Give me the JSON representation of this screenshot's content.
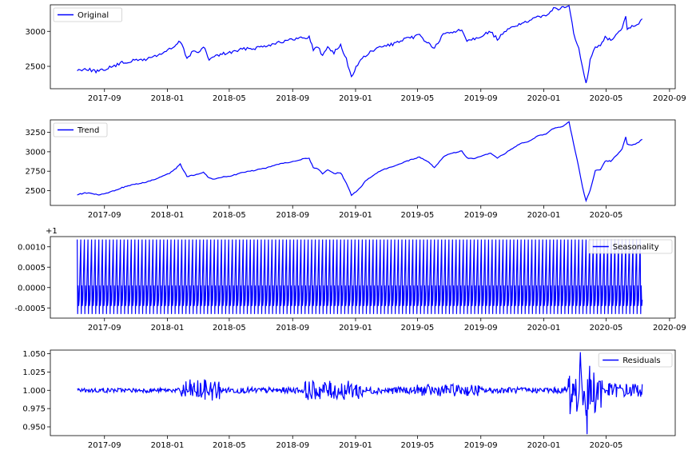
{
  "chart_data": [
    {
      "type": "line",
      "legend_label": "Original",
      "legend_loc": "upper left",
      "color": "#0000ff",
      "xlim": [
        "2017-05-19",
        "2020-09-12"
      ],
      "xticks": [
        "2017-09",
        "2018-01",
        "2018-05",
        "2018-09",
        "2019-01",
        "2019-05",
        "2019-09",
        "2020-01",
        "2020-05",
        "2020-09"
      ],
      "ylim": [
        2180,
        3380
      ],
      "yticks": [
        "2500",
        "3000"
      ],
      "x": [
        "2017-07-10",
        "2017-07-25",
        "2017-08-10",
        "2017-08-21",
        "2017-09-05",
        "2017-09-20",
        "2017-10-05",
        "2017-10-20",
        "2017-11-05",
        "2017-11-20",
        "2017-12-05",
        "2017-12-20",
        "2018-01-05",
        "2018-01-15",
        "2018-01-26",
        "2018-02-08",
        "2018-02-20",
        "2018-03-05",
        "2018-03-12",
        "2018-03-23",
        "2018-04-05",
        "2018-04-20",
        "2018-05-05",
        "2018-05-20",
        "2018-06-05",
        "2018-06-20",
        "2018-07-05",
        "2018-07-20",
        "2018-08-05",
        "2018-08-20",
        "2018-09-05",
        "2018-09-20",
        "2018-10-03",
        "2018-10-11",
        "2018-10-20",
        "2018-10-29",
        "2018-11-08",
        "2018-11-20",
        "2018-12-03",
        "2018-12-14",
        "2018-12-24",
        "2019-01-05",
        "2019-01-20",
        "2019-02-05",
        "2019-02-20",
        "2019-03-05",
        "2019-03-20",
        "2019-04-05",
        "2019-04-20",
        "2019-05-05",
        "2019-05-20",
        "2019-06-03",
        "2019-06-20",
        "2019-07-05",
        "2019-07-26",
        "2019-08-05",
        "2019-08-20",
        "2019-09-05",
        "2019-09-20",
        "2019-10-03",
        "2019-10-20",
        "2019-11-05",
        "2019-11-20",
        "2019-12-05",
        "2019-12-20",
        "2020-01-05",
        "2020-01-20",
        "2020-02-05",
        "2020-02-19",
        "2020-02-28",
        "2020-03-09",
        "2020-03-16",
        "2020-03-23",
        "2020-03-31",
        "2020-04-10",
        "2020-04-20",
        "2020-04-29",
        "2020-05-10",
        "2020-05-20",
        "2020-06-01",
        "2020-06-08",
        "2020-06-11",
        "2020-06-20",
        "2020-06-30",
        "2020-07-10"
      ],
      "y": [
        2440,
        2470,
        2440,
        2425,
        2470,
        2505,
        2550,
        2570,
        2590,
        2600,
        2640,
        2680,
        2740,
        2780,
        2860,
        2620,
        2720,
        2700,
        2780,
        2600,
        2650,
        2680,
        2700,
        2730,
        2760,
        2760,
        2790,
        2810,
        2850,
        2860,
        2890,
        2910,
        2920,
        2740,
        2780,
        2650,
        2780,
        2700,
        2800,
        2600,
        2350,
        2530,
        2650,
        2730,
        2780,
        2800,
        2830,
        2880,
        2910,
        2950,
        2840,
        2760,
        2950,
        2990,
        3020,
        2880,
        2900,
        2950,
        2990,
        2890,
        3000,
        3080,
        3120,
        3140,
        3210,
        3240,
        3320,
        3330,
        3380,
        2960,
        2760,
        2480,
        2240,
        2580,
        2790,
        2780,
        2920,
        2880,
        2960,
        3050,
        3230,
        3010,
        3100,
        3080,
        3180
      ]
    },
    {
      "type": "line",
      "legend_label": "Trend",
      "legend_loc": "upper left",
      "color": "#0000ff",
      "xlim": [
        "2017-05-19",
        "2020-09-12"
      ],
      "xticks": [
        "2017-09",
        "2018-01",
        "2018-05",
        "2018-09",
        "2019-01",
        "2019-05",
        "2019-09",
        "2020-01",
        "2020-05"
      ],
      "ylim": [
        2310,
        3410
      ],
      "yticks": [
        "2500",
        "2750",
        "3000",
        "3250"
      ],
      "x": [
        "2017-07-10",
        "2017-07-25",
        "2017-08-10",
        "2017-08-21",
        "2017-09-05",
        "2017-09-20",
        "2017-10-05",
        "2017-10-20",
        "2017-11-05",
        "2017-11-20",
        "2017-12-05",
        "2017-12-20",
        "2018-01-05",
        "2018-01-15",
        "2018-01-26",
        "2018-02-08",
        "2018-02-20",
        "2018-03-05",
        "2018-03-12",
        "2018-03-23",
        "2018-04-05",
        "2018-04-20",
        "2018-05-05",
        "2018-05-20",
        "2018-06-05",
        "2018-06-20",
        "2018-07-05",
        "2018-07-20",
        "2018-08-05",
        "2018-08-20",
        "2018-09-05",
        "2018-09-20",
        "2018-10-03",
        "2018-10-11",
        "2018-10-20",
        "2018-10-29",
        "2018-11-08",
        "2018-11-20",
        "2018-12-03",
        "2018-12-14",
        "2018-12-24",
        "2019-01-05",
        "2019-01-20",
        "2019-02-05",
        "2019-02-20",
        "2019-03-05",
        "2019-03-20",
        "2019-04-05",
        "2019-04-20",
        "2019-05-05",
        "2019-05-20",
        "2019-06-03",
        "2019-06-20",
        "2019-07-05",
        "2019-07-26",
        "2019-08-05",
        "2019-08-20",
        "2019-09-05",
        "2019-09-20",
        "2019-10-03",
        "2019-10-20",
        "2019-11-05",
        "2019-11-20",
        "2019-12-05",
        "2019-12-20",
        "2020-01-05",
        "2020-01-20",
        "2020-02-05",
        "2020-02-19",
        "2020-02-28",
        "2020-03-09",
        "2020-03-16",
        "2020-03-23",
        "2020-03-31",
        "2020-04-10",
        "2020-04-20",
        "2020-04-29",
        "2020-05-10",
        "2020-05-20",
        "2020-06-01",
        "2020-06-08",
        "2020-06-11",
        "2020-06-20",
        "2020-06-30",
        "2020-07-10"
      ],
      "y": [
        2450,
        2470,
        2460,
        2445,
        2465,
        2500,
        2540,
        2565,
        2590,
        2605,
        2640,
        2675,
        2720,
        2770,
        2840,
        2680,
        2700,
        2720,
        2740,
        2660,
        2650,
        2680,
        2690,
        2720,
        2750,
        2760,
        2785,
        2805,
        2840,
        2860,
        2880,
        2905,
        2915,
        2800,
        2780,
        2720,
        2770,
        2720,
        2730,
        2600,
        2440,
        2500,
        2620,
        2700,
        2760,
        2790,
        2820,
        2870,
        2900,
        2930,
        2880,
        2800,
        2930,
        2980,
        3010,
        2920,
        2910,
        2950,
        2980,
        2920,
        2990,
        3060,
        3110,
        3140,
        3200,
        3230,
        3300,
        3320,
        3380,
        3100,
        2800,
        2550,
        2370,
        2500,
        2760,
        2770,
        2880,
        2880,
        2950,
        3030,
        3190,
        3100,
        3090,
        3110,
        3160
      ]
    },
    {
      "type": "line",
      "legend_label": "Seasonality",
      "legend_loc": "upper right",
      "color": "#0000ff",
      "offset_label": "+1",
      "xlim": [
        "2017-05-19",
        "2020-09-12"
      ],
      "xticks": [
        "2017-09",
        "2018-01",
        "2018-05",
        "2018-09",
        "2019-01",
        "2019-05",
        "2019-09",
        "2020-01",
        "2020-05",
        "2020-09"
      ],
      "ylim": [
        -0.00075,
        0.00125
      ],
      "yticks": [
        "0.0010",
        "0.0005",
        "0.0000",
        "-0.0005"
      ],
      "x_start": "2017-07-10",
      "x_end": "2020-07-10",
      "period_trading_days": 5,
      "pattern": [
        0.00118,
        -0.00065,
        5e-05,
        -0.00045,
        -0.0003
      ],
      "y_range": [
        -0.00065,
        0.00118
      ]
    },
    {
      "type": "line",
      "legend_label": "Residuals",
      "legend_loc": "upper right",
      "color": "#0000ff",
      "xlim": [
        "2017-05-19",
        "2020-09-12"
      ],
      "xticks": [
        "2017-09",
        "2018-01",
        "2018-05",
        "2018-09",
        "2019-01",
        "2019-05",
        "2019-09",
        "2020-01",
        "2020-05"
      ],
      "ylim": [
        0.938,
        1.055
      ],
      "yticks": [
        "1.050",
        "1.025",
        "1.000",
        "0.975",
        "0.950"
      ],
      "x_start": "2017-07-10",
      "x_end": "2020-07-10",
      "base": 1.0,
      "amplitude_envelope": [
        {
          "from": "2017-07-10",
          "to": "2018-01-25",
          "amp": 0.003
        },
        {
          "from": "2018-01-25",
          "to": "2018-04-15",
          "amp": 0.015
        },
        {
          "from": "2018-04-15",
          "to": "2018-09-25",
          "amp": 0.004
        },
        {
          "from": "2018-09-25",
          "to": "2019-01-15",
          "amp": 0.013
        },
        {
          "from": "2019-01-15",
          "to": "2019-05-01",
          "amp": 0.005
        },
        {
          "from": "2019-05-01",
          "to": "2019-09-01",
          "amp": 0.008
        },
        {
          "from": "2019-09-01",
          "to": "2020-02-15",
          "amp": 0.004
        },
        {
          "from": "2020-02-15",
          "to": "2020-04-25",
          "amp": 0.035
        },
        {
          "from": "2020-04-25",
          "to": "2020-07-10",
          "amp": 0.01
        }
      ],
      "extremes": {
        "max": 1.052,
        "min": 0.94
      }
    }
  ]
}
